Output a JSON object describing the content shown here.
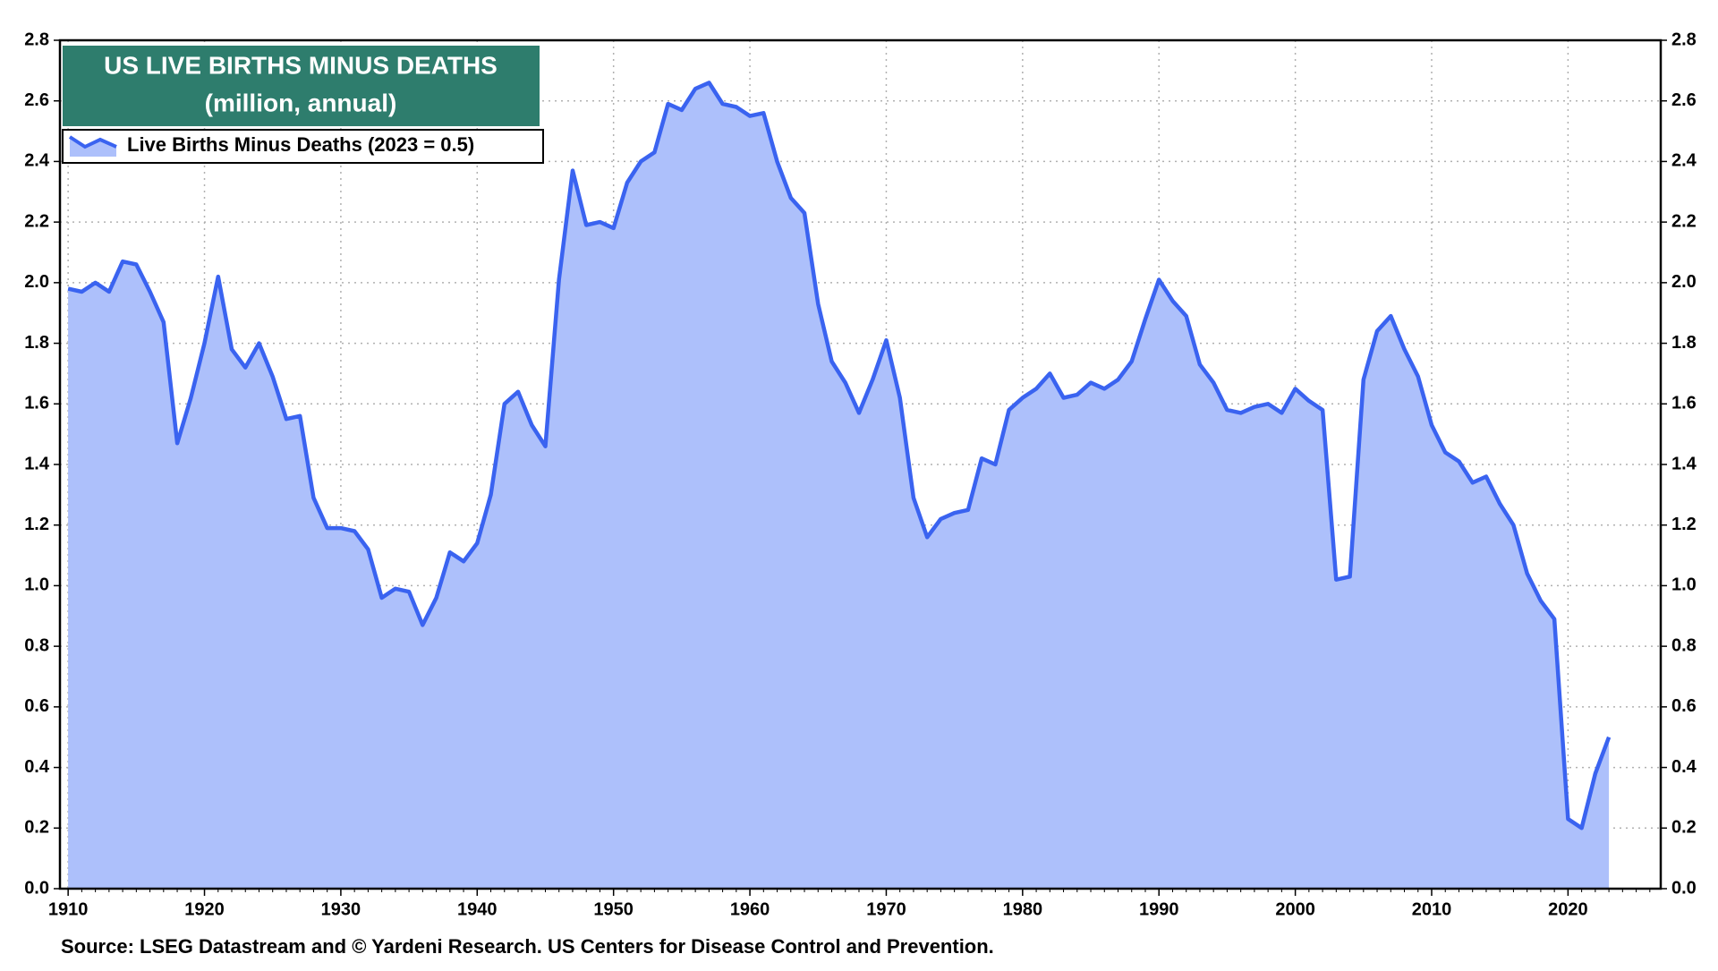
{
  "chart_data": {
    "type": "area",
    "title": "US LIVE BIRTHS MINUS DEATHS",
    "subtitle": "(million, annual)",
    "source": "Source: LSEG Datastream and © Yardeni Research. US Centers for Disease Control and Prevention.",
    "x": [
      1910,
      1911,
      1912,
      1913,
      1914,
      1915,
      1916,
      1917,
      1918,
      1919,
      1920,
      1921,
      1922,
      1923,
      1924,
      1925,
      1926,
      1927,
      1928,
      1929,
      1930,
      1931,
      1932,
      1933,
      1934,
      1935,
      1936,
      1937,
      1938,
      1939,
      1940,
      1941,
      1942,
      1943,
      1944,
      1945,
      1946,
      1947,
      1948,
      1949,
      1950,
      1951,
      1952,
      1953,
      1954,
      1955,
      1956,
      1957,
      1958,
      1959,
      1960,
      1961,
      1962,
      1963,
      1964,
      1965,
      1966,
      1967,
      1968,
      1969,
      1970,
      1971,
      1972,
      1973,
      1974,
      1975,
      1976,
      1977,
      1978,
      1979,
      1980,
      1981,
      1982,
      1983,
      1984,
      1985,
      1986,
      1987,
      1988,
      1989,
      1990,
      1991,
      1992,
      1993,
      1994,
      1995,
      1996,
      1997,
      1998,
      1999,
      2000,
      2001,
      2002,
      2003,
      2004,
      2005,
      2006,
      2007,
      2008,
      2009,
      2010,
      2011,
      2012,
      2013,
      2014,
      2015,
      2016,
      2017,
      2018,
      2019,
      2020,
      2021,
      2022,
      2023
    ],
    "series": [
      {
        "name": "Live Births Minus Deaths (2023 = 0.5)",
        "color": "#3a63f0",
        "fill": "#adc0fb",
        "values": [
          1.98,
          1.97,
          2.0,
          1.97,
          2.07,
          2.06,
          1.97,
          1.87,
          1.47,
          1.62,
          1.8,
          2.02,
          1.78,
          1.72,
          1.8,
          1.69,
          1.55,
          1.56,
          1.29,
          1.19,
          1.19,
          1.18,
          1.12,
          0.96,
          0.99,
          0.98,
          0.87,
          0.96,
          1.11,
          1.08,
          1.14,
          1.3,
          1.6,
          1.64,
          1.53,
          1.46,
          2.01,
          2.37,
          2.19,
          2.2,
          2.18,
          2.33,
          2.4,
          2.43,
          2.59,
          2.57,
          2.64,
          2.66,
          2.59,
          2.58,
          2.55,
          2.56,
          2.4,
          2.28,
          2.23,
          1.93,
          1.74,
          1.67,
          1.57,
          1.68,
          1.81,
          1.62,
          1.29,
          1.16,
          1.22,
          1.24,
          1.25,
          1.42,
          1.4,
          1.58,
          1.62,
          1.65,
          1.7,
          1.62,
          1.63,
          1.67,
          1.65,
          1.68,
          1.74,
          1.88,
          2.01,
          1.94,
          1.89,
          1.73,
          1.67,
          1.58,
          1.57,
          1.59,
          1.6,
          1.57,
          1.65,
          1.61,
          1.58,
          1.02,
          1.03,
          1.68,
          1.84,
          1.89,
          1.78,
          1.69,
          1.53,
          1.44,
          1.41,
          1.34,
          1.36,
          1.27,
          1.2,
          1.04,
          0.95,
          0.89,
          0.23,
          0.2,
          0.38,
          0.5
        ]
      }
    ],
    "xlim": [
      1909.4,
      2026.8
    ],
    "xticks": [
      1910,
      1920,
      1930,
      1940,
      1950,
      1960,
      1970,
      1980,
      1990,
      2000,
      2010,
      2020
    ],
    "ylim": [
      0,
      2.8
    ],
    "yticks": [
      {
        "value": 0,
        "label": "0.0"
      },
      0.2,
      0.4,
      0.6,
      0.8,
      {
        "value": 1,
        "label": "1.0"
      },
      1.2,
      1.4,
      1.6,
      1.8,
      {
        "value": 2,
        "label": "2.0"
      },
      2.2,
      2.4,
      2.6,
      2.8
    ],
    "grid": true,
    "title_color": "#2e7d6d"
  }
}
